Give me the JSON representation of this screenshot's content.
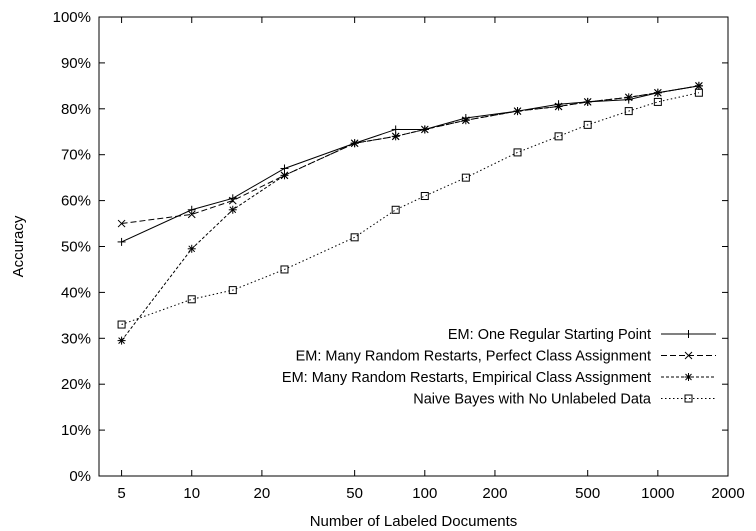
{
  "chart_data": {
    "type": "line",
    "title": "",
    "xlabel": "Number of Labeled Documents",
    "ylabel": "Accuracy",
    "xscale": "log",
    "xlim": [
      4,
      2000
    ],
    "ylim": [
      0,
      100
    ],
    "xticks": [
      5,
      10,
      20,
      50,
      100,
      200,
      500,
      1000,
      2000
    ],
    "xtick_labels": [
      "5",
      "10",
      "20",
      "50",
      "100",
      "200",
      "500",
      "1000",
      "2000"
    ],
    "yticks": [
      0,
      10,
      20,
      30,
      40,
      50,
      60,
      70,
      80,
      90,
      100
    ],
    "ytick_labels": [
      "0%",
      "10%",
      "20%",
      "30%",
      "40%",
      "50%",
      "60%",
      "70%",
      "80%",
      "90%",
      "100%"
    ],
    "grid": false,
    "legend_position": "bottom-right",
    "series": [
      {
        "name": "EM: One Regular Starting Point",
        "marker": "plus",
        "dash": "solid",
        "x": [
          5,
          10,
          15,
          25,
          50,
          75,
          100,
          150,
          250,
          375,
          500,
          750,
          1000,
          1500
        ],
        "y": [
          51,
          58,
          60.5,
          67,
          72.5,
          75.5,
          75.5,
          78,
          79.5,
          81,
          81.5,
          82,
          83.5,
          85
        ]
      },
      {
        "name": "EM: Many Random Restarts, Perfect Class Assignment",
        "marker": "cross",
        "dash": "dashed",
        "x": [
          5,
          10,
          15,
          25,
          50,
          75,
          100,
          150,
          250,
          375,
          500,
          750,
          1000,
          1500
        ],
        "y": [
          55,
          57,
          60,
          65.5,
          72.5,
          74,
          75.5,
          77.5,
          79.5,
          80.5,
          81.5,
          82.5,
          83.5,
          85
        ]
      },
      {
        "name": "EM: Many Random Restarts, Empirical Class Assignment",
        "marker": "star",
        "dash": "dotted-dense",
        "x": [
          5,
          10,
          15,
          25,
          50,
          75,
          100,
          150,
          250,
          375,
          500,
          750,
          1000,
          1500
        ],
        "y": [
          29.5,
          49.5,
          58,
          65.5,
          72.5,
          74,
          75.5,
          77.5,
          79.5,
          80.5,
          81.5,
          82.5,
          83.5,
          85
        ]
      },
      {
        "name": "Naive Bayes with No Unlabeled Data",
        "marker": "square",
        "dash": "dotted",
        "x": [
          5,
          10,
          15,
          25,
          50,
          75,
          100,
          150,
          250,
          375,
          500,
          750,
          1000,
          1500
        ],
        "y": [
          33,
          38.5,
          40.5,
          45,
          52,
          58,
          61,
          65,
          70.5,
          74,
          76.5,
          79.5,
          81.5,
          83.5
        ]
      }
    ]
  }
}
